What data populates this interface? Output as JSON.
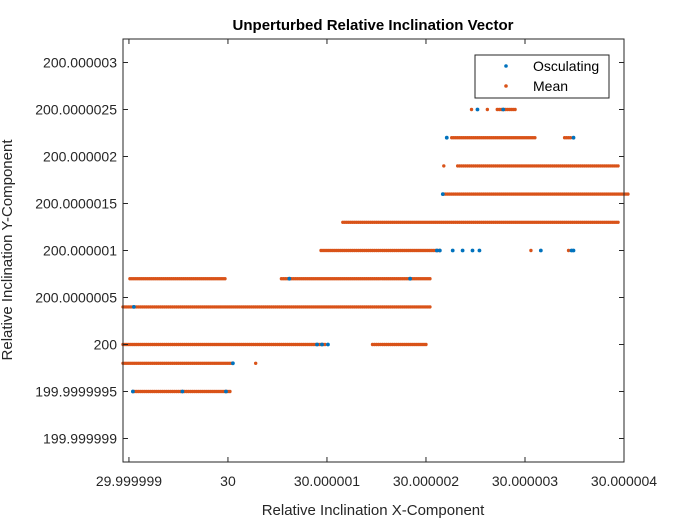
{
  "chart_data": {
    "type": "scatter",
    "title": "Unperturbed Relative Inclination Vector",
    "xlabel": "Relative Inclination X-Component",
    "ylabel": "Relative Inclination Y-Component",
    "xlim": [
      29.99999894,
      30.000004
    ],
    "ylim": [
      199.99999875,
      200.00000325
    ],
    "x_ticks": [
      29.999999,
      30.0,
      30.000001,
      30.000002,
      30.000003,
      30.000004
    ],
    "x_tick_labels": [
      "29.999999",
      "30",
      "30.000001",
      "30.000002",
      "30.000003",
      "30.000004"
    ],
    "y_ticks": [
      199.999999,
      199.9999995,
      200.0,
      200.0000005,
      200.000001,
      200.0000015,
      200.000002,
      200.0000025,
      200.000003
    ],
    "y_tick_labels": [
      "199.999999",
      "199.9999995",
      "200",
      "200.0000005",
      "200.000001",
      "200.0000015",
      "200.000002",
      "200.0000025",
      "200.000003"
    ],
    "grid": false,
    "legend_position": "top-right",
    "colors": {
      "osculating": "#0072BD",
      "mean": "#D95319",
      "axis": "#262626"
    },
    "series": [
      {
        "name": "Osculating",
        "color": "#0072BD",
        "points": [
          [
            29.99999904,
            199.9999995
          ],
          [
            29.99999954,
            199.9999995
          ],
          [
            29.99999998,
            199.9999995
          ],
          [
            30.00000005,
            199.9999998
          ],
          [
            29.99999905,
            200.0000004
          ],
          [
            30.0000009,
            200.0
          ],
          [
            30.00000095,
            200.0
          ],
          [
            30.00000101,
            200.0
          ],
          [
            30.00000062,
            200.0000007
          ],
          [
            30.00000184,
            200.0000007
          ],
          [
            30.00000211,
            200.000001
          ],
          [
            30.00000214,
            200.000001
          ],
          [
            30.00000227,
            200.000001
          ],
          [
            30.00000237,
            200.000001
          ],
          [
            30.00000247,
            200.000001
          ],
          [
            30.00000254,
            200.000001
          ],
          [
            30.00000316,
            200.000001
          ],
          [
            30.00000347,
            200.000001
          ],
          [
            30.00000349,
            200.000001
          ],
          [
            30.00000217,
            200.0000016
          ],
          [
            30.00000221,
            200.0000022
          ],
          [
            30.00000349,
            200.0000022
          ],
          [
            30.00000252,
            200.0000025
          ],
          [
            30.00000278,
            200.0000025
          ]
        ]
      },
      {
        "name": "Mean",
        "color": "#D95319",
        "points": [
          {
            "y": 199.9999995,
            "x_start": 29.99999904,
            "x_end": 30.00000002,
            "step": 2e-08
          },
          {
            "y": 199.9999998,
            "x_start": 29.99999894,
            "x_end": 30.00000004,
            "step": 2e-08
          },
          {
            "y": 199.9999998,
            "x_start": 30.00000028,
            "x_end": 30.00000028,
            "step": 2e-08
          },
          {
            "y": 200.0,
            "x_start": 29.99999894,
            "x_end": 30.00000099,
            "step": 2e-08
          },
          {
            "y": 200.0,
            "x_start": 30.00000146,
            "x_end": 30.000002,
            "step": 2e-08
          },
          {
            "y": 200.0000004,
            "x_start": 29.99999894,
            "x_end": 30.00000204,
            "step": 2e-08
          },
          {
            "y": 200.0000007,
            "x_start": 29.99999901,
            "x_end": 29.99999996,
            "step": 2e-08
          },
          {
            "y": 200.0000007,
            "x_start": 30.00000054,
            "x_end": 30.00000204,
            "step": 2e-08
          },
          {
            "y": 200.000001,
            "x_start": 30.00000094,
            "x_end": 30.00000214,
            "step": 2e-08
          },
          {
            "y": 200.000001,
            "x_start": 30.00000306,
            "x_end": 30.00000306,
            "step": 2e-08
          },
          {
            "y": 200.000001,
            "x_start": 30.00000344,
            "x_end": 30.00000344,
            "step": 2e-08
          },
          {
            "y": 200.0000013,
            "x_start": 30.00000116,
            "x_end": 30.00000394,
            "step": 2e-08
          },
          {
            "y": 200.0000016,
            "x_start": 30.00000218,
            "x_end": 30.00000404,
            "step": 2e-08
          },
          {
            "y": 200.0000019,
            "x_start": 30.00000218,
            "x_end": 30.00000218,
            "step": 2e-08
          },
          {
            "y": 200.0000019,
            "x_start": 30.00000232,
            "x_end": 30.00000394,
            "step": 2e-08
          },
          {
            "y": 200.0000022,
            "x_start": 30.00000226,
            "x_end": 30.0000031,
            "step": 2e-08
          },
          {
            "y": 200.0000022,
            "x_start": 30.0000034,
            "x_end": 30.00000346,
            "step": 2e-08
          },
          {
            "y": 200.0000025,
            "x_start": 30.00000246,
            "x_end": 30.00000246,
            "step": 2e-08
          },
          {
            "y": 200.0000025,
            "x_start": 30.00000262,
            "x_end": 30.00000262,
            "step": 2e-08
          },
          {
            "y": 200.0000025,
            "x_start": 30.00000272,
            "x_end": 30.0000029,
            "step": 2e-08
          }
        ]
      }
    ]
  }
}
